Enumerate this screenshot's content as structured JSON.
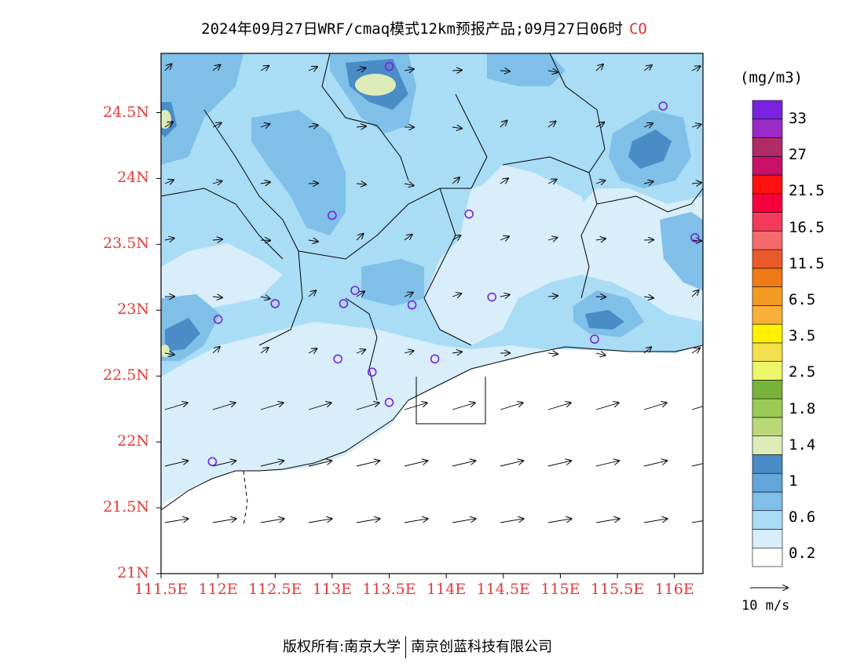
{
  "title": {
    "text": "2024年09月27日WRF/cmaq模式12km预报产品;09月27日06时",
    "species": "CO"
  },
  "axes": {
    "lat_ticks": [
      "24.5N",
      "24N",
      "23.5N",
      "23N",
      "22.5N",
      "22N",
      "21.5N",
      "21N"
    ],
    "lon_ticks": [
      "111.5E",
      "112E",
      "112.5E",
      "113E",
      "113.5E",
      "114E",
      "114.5E",
      "115E",
      "115.5E",
      "116E"
    ],
    "lon_range": [
      111.5,
      116.25
    ],
    "lat_range": [
      21.0,
      24.95
    ]
  },
  "colorbar": {
    "unit": "(mg/m3)",
    "labels": [
      "33",
      "27",
      "21.5",
      "16.5",
      "11.5",
      "6.5",
      "3.5",
      "2.5",
      "1.8",
      "1.4",
      "1",
      "0.6",
      "0.2"
    ],
    "colors": [
      "#ffffff",
      "#d8eefa",
      "#a9dcf5",
      "#7fbfe8",
      "#62a6dc",
      "#4a8cc6",
      "#dcebb8",
      "#bcd97a",
      "#9ccb55",
      "#78b43a",
      "#eef56a",
      "#f4e04a",
      "#fff100",
      "#f8b03a",
      "#f39a22",
      "#f07a14",
      "#ea5a2a",
      "#f56a6a",
      "#f43a5a",
      "#f5003a",
      "#ff1010",
      "#c8106a",
      "#b02a66",
      "#9a2ac8",
      "#7a22e0"
    ]
  },
  "wind_reference": {
    "label": "10 m/s"
  },
  "footer": {
    "left": "版权所有:南京大学",
    "right": "南京创蓝科技有限公司"
  },
  "stations": [
    [
      113.5,
      24.85
    ],
    [
      115.9,
      24.55
    ],
    [
      113.0,
      23.72
    ],
    [
      114.2,
      23.73
    ],
    [
      116.18,
      23.55
    ],
    [
      112.5,
      23.05
    ],
    [
      112.0,
      22.93
    ],
    [
      113.1,
      23.05
    ],
    [
      113.2,
      23.15
    ],
    [
      113.7,
      23.04
    ],
    [
      114.4,
      23.1
    ],
    [
      115.3,
      22.78
    ],
    [
      113.05,
      22.63
    ],
    [
      113.35,
      22.53
    ],
    [
      113.9,
      22.63
    ],
    [
      113.5,
      22.3
    ],
    [
      111.95,
      21.85
    ]
  ]
}
